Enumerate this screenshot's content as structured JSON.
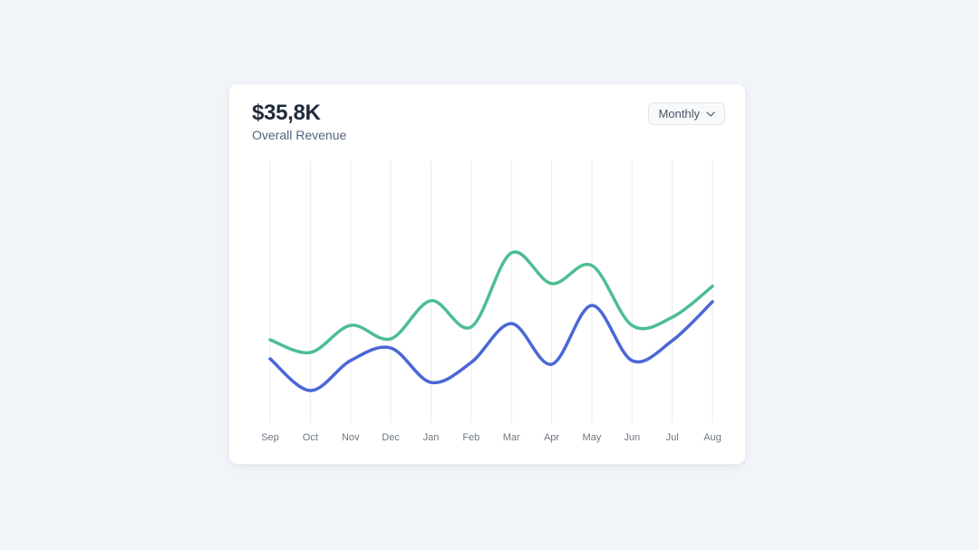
{
  "page": {
    "background": "#f1f4f9"
  },
  "card": {
    "title": "$35,8K",
    "subtitle": "Overall Revenue",
    "period_selector": {
      "label": "Monthly",
      "icon": "chevron-down-icon"
    }
  },
  "chart_data": {
    "type": "line",
    "title": "Overall Revenue",
    "categories": [
      "Sep",
      "Oct",
      "Nov",
      "Dec",
      "Jan",
      "Feb",
      "Mar",
      "Apr",
      "May",
      "Jun",
      "Jul",
      "Aug"
    ],
    "series": [
      {
        "name": "series-green",
        "color": "#4dbe91",
        "values": [
          31.7,
          26.9,
          37.2,
          32.1,
          46.6,
          36.6,
          64.8,
          53.1,
          60.0,
          37.2,
          40.3,
          52.1
        ]
      },
      {
        "name": "series-blue",
        "color": "#4a67d6",
        "values": [
          24.5,
          12.4,
          23.8,
          28.6,
          15.5,
          23.1,
          37.9,
          22.4,
          44.8,
          23.8,
          31.4,
          46.2
        ]
      }
    ],
    "xlabel": "",
    "ylabel": "",
    "ylim": [
      0,
      100
    ],
    "y_axis_visible": false,
    "grid": "vertical-only",
    "legend": "none",
    "curve": "smooth",
    "grid_color": "#e9ebef"
  }
}
